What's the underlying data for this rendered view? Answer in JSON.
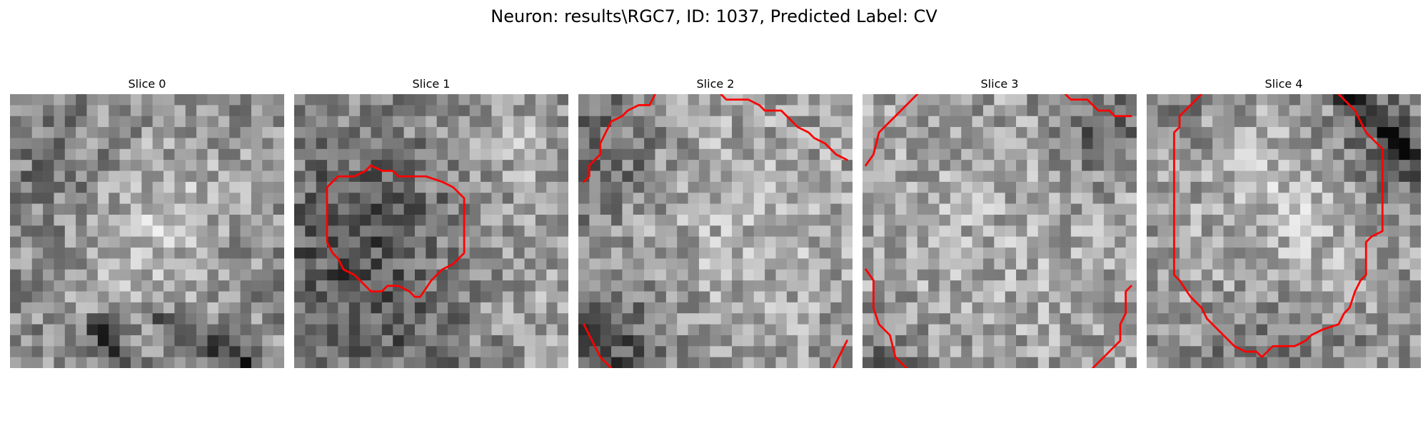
{
  "figure": {
    "title": "Neuron: results\\RGC7, ID: 1037, Predicted Label: CV"
  },
  "slices": [
    {
      "label": "Slice 0",
      "seed": 11,
      "base": 0.56,
      "blobs": [
        [
          14,
          10,
          5,
          0.14
        ],
        [
          12,
          16,
          4,
          0.1
        ]
      ],
      "darkBlobs": [
        [
          4,
          6,
          4,
          0.1
        ]
      ],
      "darkLines": [
        [
          [
            8,
            21
          ],
          [
            13,
            29
          ]
        ],
        [
          [
            13,
            20
          ],
          [
            22,
            25
          ]
        ]
      ],
      "contours": []
    },
    {
      "label": "Slice 1",
      "seed": 22,
      "base": 0.58,
      "blobs": [
        [
          20,
          5,
          4,
          0.1
        ],
        [
          25,
          19,
          4,
          0.08
        ]
      ],
      "darkBlobs": [
        [
          6,
          12,
          6,
          0.24
        ],
        [
          4,
          22,
          5,
          0.14
        ],
        [
          12,
          25,
          4,
          0.1
        ]
      ],
      "darkLines": [],
      "contours": [
        [
          [
            3,
            8.5
          ],
          [
            4,
            7.5
          ],
          [
            5.5,
            7.5
          ],
          [
            6.5,
            7
          ],
          [
            7,
            6.5
          ],
          [
            8,
            7
          ],
          [
            9,
            7
          ],
          [
            9.5,
            7.5
          ],
          [
            12,
            7.5
          ],
          [
            13.5,
            8
          ],
          [
            14.5,
            8.5
          ],
          [
            15.5,
            9.5
          ],
          [
            15.5,
            14.5
          ],
          [
            14.5,
            15.5
          ],
          [
            13.5,
            16
          ],
          [
            12.5,
            17
          ],
          [
            11.5,
            18.5
          ],
          [
            11,
            18.5
          ],
          [
            10.5,
            18
          ],
          [
            9.5,
            17.5
          ],
          [
            8.5,
            17.5
          ],
          [
            8,
            18
          ],
          [
            7,
            18
          ],
          [
            6,
            17
          ],
          [
            5.5,
            16.5
          ],
          [
            4.5,
            16
          ],
          [
            4,
            15
          ],
          [
            3.5,
            14.5
          ],
          [
            3,
            13.5
          ],
          [
            3,
            8.5
          ]
        ]
      ]
    },
    {
      "label": "Slice 2",
      "seed": 33,
      "base": 0.6,
      "blobs": [
        [
          14,
          13,
          8,
          0.1
        ]
      ],
      "darkBlobs": [
        [
          2,
          5,
          4,
          0.22
        ],
        [
          2,
          22,
          5,
          0.26
        ],
        [
          4,
          28,
          3,
          0.18
        ]
      ],
      "darkLines": [],
      "contours": [
        [
          [
            0.5,
            8
          ],
          [
            1,
            7.5
          ],
          [
            1,
            6.5
          ],
          [
            2,
            5.5
          ],
          [
            2,
            4.5
          ],
          [
            2.5,
            3.5
          ],
          [
            3,
            2.5
          ],
          [
            4,
            2
          ],
          [
            4.5,
            1.5
          ],
          [
            5.5,
            1
          ],
          [
            6.5,
            1
          ],
          [
            7,
            0
          ]
        ],
        [
          [
            13,
            0
          ],
          [
            13.5,
            0.5
          ],
          [
            15.5,
            0.5
          ],
          [
            16.5,
            1
          ],
          [
            17,
            1.5
          ],
          [
            18.5,
            1.5
          ],
          [
            19.5,
            2.5
          ],
          [
            20,
            3
          ],
          [
            21,
            3.5
          ],
          [
            21.5,
            4
          ],
          [
            22.5,
            4.5
          ],
          [
            23.5,
            5.5
          ],
          [
            24.5,
            6
          ]
        ],
        [
          [
            0.5,
            21
          ],
          [
            1,
            22
          ],
          [
            1.5,
            23
          ],
          [
            2,
            24
          ],
          [
            3,
            25
          ],
          [
            3.5,
            26
          ],
          [
            4.5,
            27
          ],
          [
            5,
            27.5
          ]
        ],
        [
          [
            21.5,
            27
          ],
          [
            22.5,
            26
          ],
          [
            23,
            25.5
          ],
          [
            23.5,
            24.5
          ],
          [
            24,
            23.5
          ],
          [
            24.5,
            22.5
          ]
        ]
      ]
    },
    {
      "label": "Slice 3",
      "seed": 44,
      "base": 0.62,
      "blobs": [
        [
          12,
          14,
          7,
          0.06
        ]
      ],
      "darkBlobs": [
        [
          22,
          3,
          3,
          0.24
        ],
        [
          1,
          25,
          3,
          0.22
        ]
      ],
      "darkLines": [],
      "contours": [
        [
          [
            0.3,
            6.5
          ],
          [
            1,
            5.5
          ],
          [
            1.5,
            3.5
          ],
          [
            3,
            2
          ],
          [
            4.5,
            0.5
          ],
          [
            5,
            0
          ]
        ],
        [
          [
            18.5,
            0
          ],
          [
            19,
            0.5
          ],
          [
            20.5,
            0.5
          ],
          [
            21,
            1
          ],
          [
            21.5,
            1.5
          ],
          [
            22.5,
            1.5
          ],
          [
            23,
            2
          ],
          [
            24.5,
            2
          ]
        ],
        [
          [
            0.3,
            16
          ],
          [
            1,
            17
          ],
          [
            1,
            19.5
          ],
          [
            1.5,
            21
          ],
          [
            2.5,
            22
          ],
          [
            3,
            24
          ],
          [
            4.5,
            25.5
          ],
          [
            5.5,
            27
          ]
        ],
        [
          [
            24.5,
            17.5
          ],
          [
            24,
            18
          ],
          [
            24,
            20
          ],
          [
            23.5,
            21
          ],
          [
            23.5,
            22.5
          ],
          [
            22.5,
            23.5
          ],
          [
            21.5,
            24.5
          ],
          [
            20.5,
            25.5
          ],
          [
            20,
            26.5
          ],
          [
            21,
            27
          ]
        ]
      ]
    },
    {
      "label": "Slice 4",
      "seed": 55,
      "base": 0.58,
      "blobs": [
        [
          13,
          10,
          7,
          0.16
        ]
      ],
      "darkBlobs": [
        [
          21,
          3,
          4,
          0.18
        ],
        [
          23,
          8,
          3,
          0.14
        ],
        [
          2,
          1,
          3,
          0.1
        ],
        [
          12,
          26,
          5,
          0.14
        ]
      ],
      "darkLines": [
        [
          [
            18,
            0
          ],
          [
            24.5,
            6
          ]
        ]
      ],
      "contours": [
        [
          [
            5,
            0
          ],
          [
            4,
            1
          ],
          [
            3,
            2
          ],
          [
            3,
            3
          ],
          [
            2.5,
            3.5
          ],
          [
            2.5,
            16.5
          ],
          [
            3,
            17
          ],
          [
            4,
            18.5
          ],
          [
            5,
            19.5
          ],
          [
            5.5,
            20.5
          ],
          [
            6.5,
            21.5
          ],
          [
            7,
            22
          ],
          [
            7.5,
            22.5
          ],
          [
            8,
            23
          ],
          [
            9,
            23.5
          ],
          [
            10,
            23.5
          ],
          [
            10.5,
            24
          ],
          [
            11,
            23.5
          ],
          [
            11.5,
            23
          ],
          [
            13,
            23
          ],
          [
            13.5,
            23
          ],
          [
            14.5,
            22.5
          ],
          [
            15,
            22
          ],
          [
            16,
            21.5
          ],
          [
            17.5,
            21
          ],
          [
            18,
            20
          ],
          [
            18.5,
            19.5
          ],
          [
            19,
            18
          ],
          [
            19.5,
            17
          ],
          [
            20,
            16.5
          ],
          [
            20,
            13.5
          ],
          [
            20.5,
            13
          ],
          [
            21.5,
            12.5
          ],
          [
            21.5,
            5
          ],
          [
            20.5,
            4
          ],
          [
            20,
            3.5
          ],
          [
            19.5,
            2.5
          ],
          [
            19,
            1.5
          ],
          [
            18,
            0.5
          ],
          [
            17.5,
            0
          ]
        ]
      ]
    }
  ],
  "colors": {
    "contour": "#ff0000"
  }
}
